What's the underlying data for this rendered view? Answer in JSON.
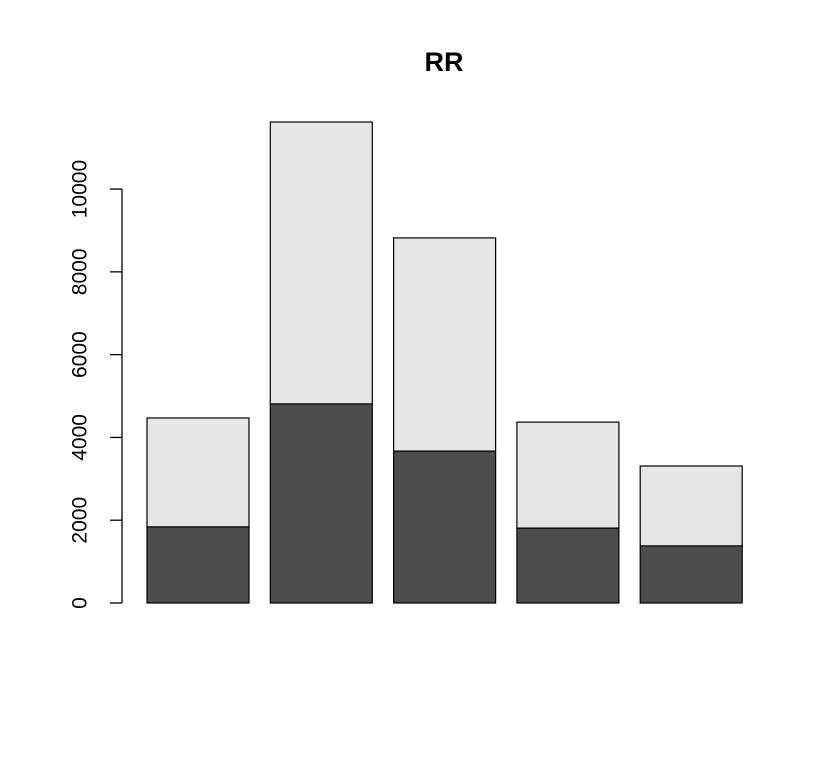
{
  "chart_data": {
    "type": "stacked-bar",
    "title": "RR",
    "categories": [
      null,
      null,
      null,
      null,
      null
    ],
    "series": [
      {
        "color": "#4d4d4d",
        "values": [
          1840,
          4810,
          3670,
          1810,
          1380
        ]
      },
      {
        "color": "#e6e6e6",
        "values": [
          2630,
          6810,
          5150,
          2560,
          1930
        ]
      }
    ],
    "ylim": [
      0,
      11620
    ],
    "yticks": [
      0,
      2000,
      4000,
      6000,
      8000,
      10000
    ],
    "grid": false
  }
}
